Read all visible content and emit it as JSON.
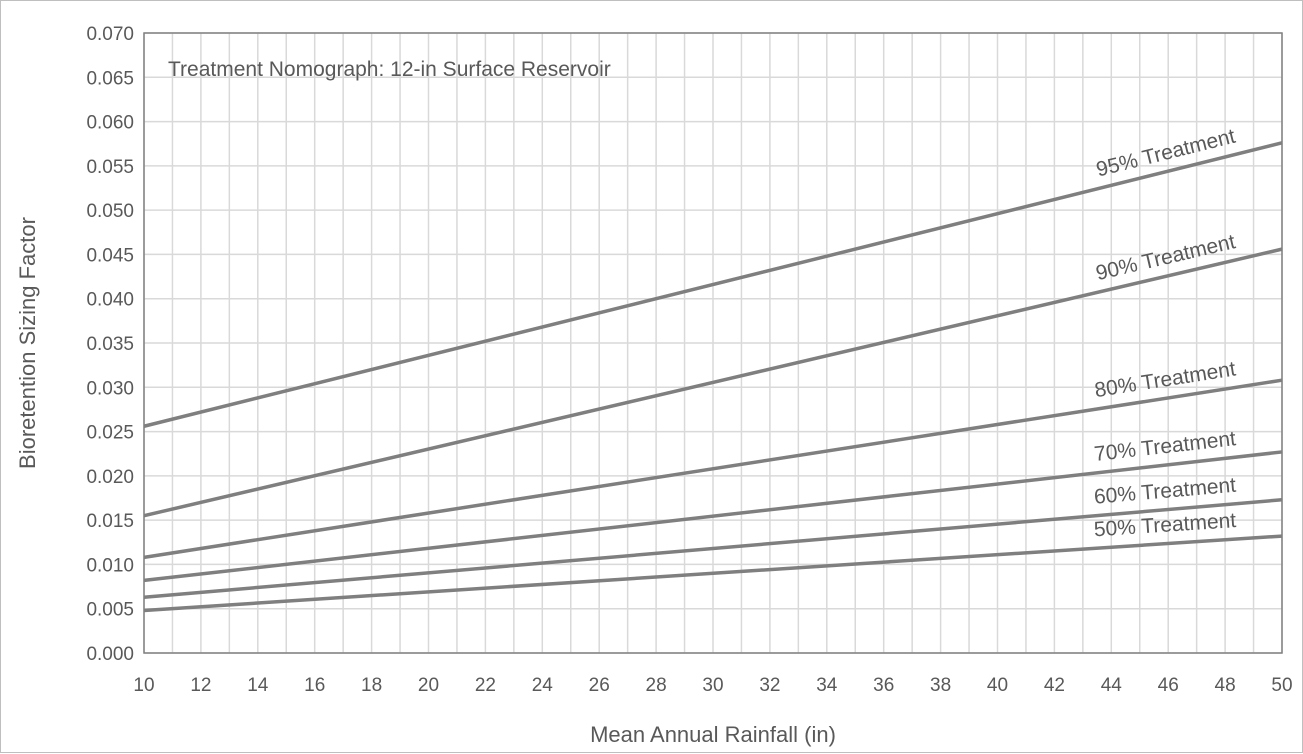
{
  "chart_data": {
    "type": "line",
    "title": "Treatment Nomograph: 12-in Surface Reservoir",
    "xlabel": "Mean Annual Rainfall (in)",
    "ylabel": "Bioretention Sizing Factor",
    "xlim": [
      10,
      50
    ],
    "ylim": [
      0,
      0.07
    ],
    "grid": true,
    "x_ticks": [
      "10",
      "12",
      "14",
      "16",
      "18",
      "20",
      "22",
      "24",
      "26",
      "28",
      "30",
      "32",
      "34",
      "36",
      "38",
      "40",
      "42",
      "44",
      "46",
      "48",
      "50"
    ],
    "y_ticks": [
      "0.000",
      "0.005",
      "0.010",
      "0.015",
      "0.020",
      "0.025",
      "0.030",
      "0.035",
      "0.040",
      "0.045",
      "0.050",
      "0.055",
      "0.060",
      "0.065",
      "0.070"
    ],
    "series_color": "#7f7f7f",
    "grid_color": "#d9d9d9",
    "series": [
      {
        "name": "95% Treatment",
        "x": [
          10,
          50
        ],
        "y": [
          0.0256,
          0.0576
        ]
      },
      {
        "name": "90% Treatment",
        "x": [
          10,
          50
        ],
        "y": [
          0.0155,
          0.0456
        ]
      },
      {
        "name": "80% Treatment",
        "x": [
          10,
          50
        ],
        "y": [
          0.0108,
          0.0308
        ]
      },
      {
        "name": "70% Treatment",
        "x": [
          10,
          50
        ],
        "y": [
          0.0082,
          0.0227
        ]
      },
      {
        "name": "60% Treatment",
        "x": [
          10,
          50
        ],
        "y": [
          0.0063,
          0.0173
        ]
      },
      {
        "name": "50% Treatment",
        "x": [
          10,
          50
        ],
        "y": [
          0.0048,
          0.0132
        ]
      }
    ]
  }
}
